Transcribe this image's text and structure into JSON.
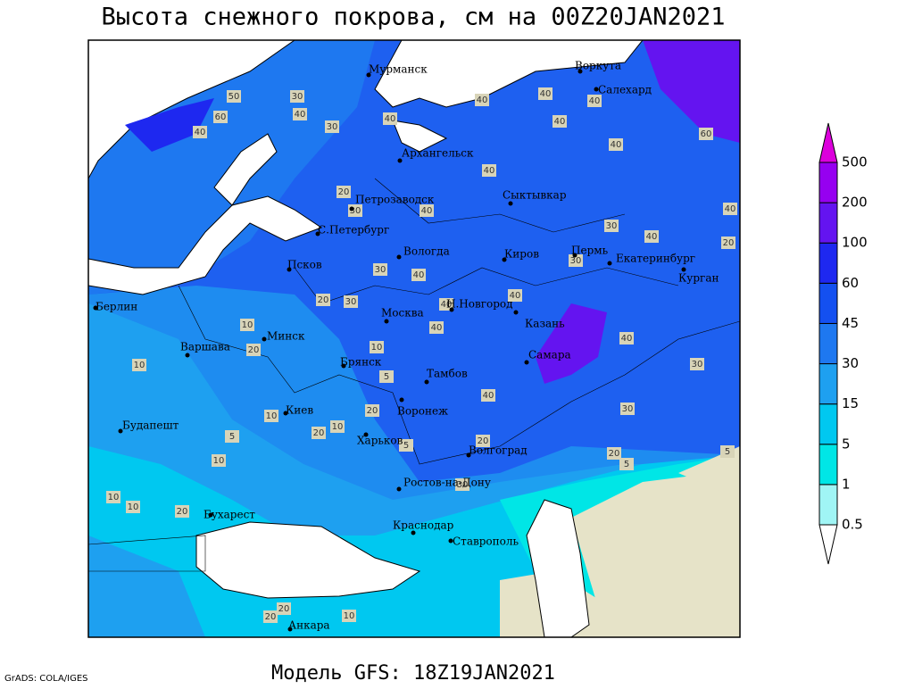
{
  "title": "Высота снежного покрова, см на 00Z20JAN2021",
  "footer": "Модель GFS: 18Z19JAN2021",
  "credit": "GrADS: COLA/IGES",
  "legend": {
    "levels": [
      0.5,
      1,
      5,
      15,
      30,
      45,
      60,
      100,
      200,
      500
    ],
    "colors": [
      "#ffffff",
      "#a0f5f5",
      "#00e6e6",
      "#00c8f0",
      "#1ea0f0",
      "#1e78f0",
      "#1450f0",
      "#1e28f0",
      "#6414f0",
      "#9600f0",
      "#dc00dc"
    ]
  },
  "cities": [
    "Мурманск",
    "Воркута",
    "Салехард",
    "Архангельск",
    "Сыктывкар",
    "Петрозаводск",
    "С.Петербург",
    "Вологда",
    "Киров",
    "Пермь",
    "Екатеринбург",
    "Курган",
    "Псков",
    "Берлин",
    "Н.Новгород",
    "Москва",
    "Казань",
    "Минск",
    "Варшава",
    "Самара",
    "Брянск",
    "Тамбов",
    "Киев",
    "Воронеж",
    "Будапешт",
    "Харьков",
    "Волгоград",
    "Ростов-на-Дону",
    "Бухарест",
    "Краснодар",
    "Ставрополь",
    "Анкара"
  ],
  "contour_labels": [
    50,
    30,
    60,
    40,
    40,
    30,
    40,
    40,
    40,
    40,
    60,
    40,
    40,
    20,
    30,
    40,
    30,
    40,
    40,
    40,
    20,
    30,
    30,
    40,
    20,
    30,
    40,
    40,
    10,
    20,
    10,
    40,
    40,
    30,
    10,
    5,
    10,
    20,
    40,
    30,
    5,
    10,
    20,
    20,
    5,
    10,
    20,
    5,
    10,
    10,
    20,
    30,
    5,
    20,
    20,
    10
  ]
}
